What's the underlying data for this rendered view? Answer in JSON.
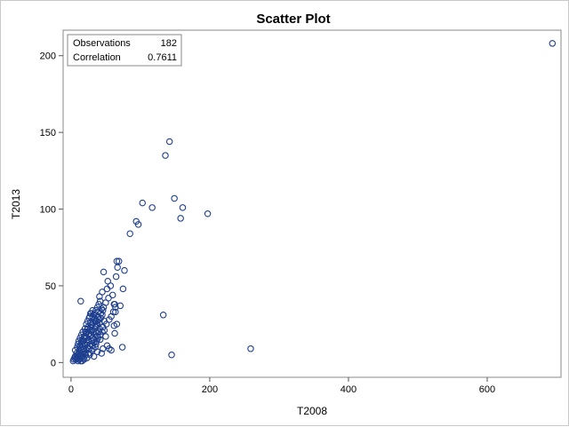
{
  "chart_data": {
    "type": "scatter",
    "title": "Scatter Plot",
    "xlabel": "T2008",
    "ylabel": "T2013",
    "xlim": [
      -5,
      700
    ],
    "ylim": [
      -5,
      212
    ],
    "xticks": [
      0,
      200,
      400,
      600
    ],
    "yticks": [
      0,
      50,
      100,
      150,
      200
    ],
    "grid": false,
    "legend": "none",
    "marker_color": "#1f3f8f",
    "stats": [
      {
        "label": "Observations",
        "value": "182"
      },
      {
        "label": "Correlation",
        "value": "0.7611"
      }
    ],
    "points": [
      [
        694,
        208
      ],
      [
        142,
        144
      ],
      [
        136,
        135
      ],
      [
        149,
        107
      ],
      [
        103,
        104
      ],
      [
        117,
        101
      ],
      [
        161,
        101
      ],
      [
        197,
        97
      ],
      [
        94,
        92
      ],
      [
        158,
        94
      ],
      [
        97,
        90
      ],
      [
        85,
        84
      ],
      [
        66,
        66
      ],
      [
        69,
        66
      ],
      [
        67,
        62
      ],
      [
        47,
        59
      ],
      [
        77,
        60
      ],
      [
        53,
        53
      ],
      [
        65,
        56
      ],
      [
        57,
        50
      ],
      [
        52,
        48
      ],
      [
        75,
        48
      ],
      [
        45,
        46
      ],
      [
        41,
        43
      ],
      [
        42,
        40
      ],
      [
        14,
        40
      ],
      [
        40,
        38
      ],
      [
        63,
        38
      ],
      [
        71,
        37
      ],
      [
        38,
        36
      ],
      [
        44,
        35
      ],
      [
        36,
        34
      ],
      [
        46,
        34
      ],
      [
        64,
        33
      ],
      [
        28,
        32
      ],
      [
        34,
        32
      ],
      [
        31,
        30
      ],
      [
        39,
        30
      ],
      [
        26,
        29
      ],
      [
        33,
        28
      ],
      [
        43,
        29
      ],
      [
        37,
        27
      ],
      [
        28,
        26
      ],
      [
        30,
        25
      ],
      [
        24,
        23
      ],
      [
        35,
        23
      ],
      [
        46,
        23
      ],
      [
        62,
        24
      ],
      [
        66,
        25
      ],
      [
        27,
        21
      ],
      [
        23,
        20
      ],
      [
        32,
        20
      ],
      [
        40,
        20
      ],
      [
        22,
        19
      ],
      [
        29,
        18
      ],
      [
        35,
        18
      ],
      [
        21,
        17
      ],
      [
        27,
        17
      ],
      [
        38,
        17
      ],
      [
        50,
        17
      ],
      [
        63,
        19
      ],
      [
        19,
        16
      ],
      [
        25,
        15
      ],
      [
        33,
        15
      ],
      [
        17,
        14
      ],
      [
        23,
        13
      ],
      [
        30,
        14
      ],
      [
        42,
        15
      ],
      [
        16,
        12
      ],
      [
        20,
        12
      ],
      [
        27,
        11
      ],
      [
        36,
        12
      ],
      [
        14,
        10
      ],
      [
        19,
        9
      ],
      [
        24,
        10
      ],
      [
        32,
        9
      ],
      [
        46,
        9
      ],
      [
        55,
        9
      ],
      [
        12,
        8
      ],
      [
        17,
        7
      ],
      [
        22,
        8
      ],
      [
        30,
        8
      ],
      [
        38,
        7
      ],
      [
        11,
        6
      ],
      [
        15,
        5
      ],
      [
        20,
        6
      ],
      [
        27,
        5
      ],
      [
        44,
        6
      ],
      [
        9,
        4
      ],
      [
        13,
        3
      ],
      [
        18,
        3
      ],
      [
        33,
        4
      ],
      [
        7,
        2
      ],
      [
        11,
        2
      ],
      [
        16,
        1
      ],
      [
        3,
        1
      ],
      [
        5,
        3
      ],
      [
        8,
        6
      ],
      [
        10,
        5
      ],
      [
        12,
        4
      ],
      [
        14,
        6
      ],
      [
        18,
        9
      ],
      [
        20,
        11
      ],
      [
        25,
        18
      ],
      [
        29,
        24
      ],
      [
        31,
        16
      ],
      [
        34,
        29
      ],
      [
        36,
        20
      ],
      [
        39,
        33
      ],
      [
        41,
        26
      ],
      [
        45,
        31
      ],
      [
        48,
        27
      ],
      [
        52,
        11
      ],
      [
        58,
        8
      ],
      [
        74,
        10
      ],
      [
        133,
        31
      ],
      [
        145,
        5
      ],
      [
        259,
        9
      ],
      [
        6,
        8
      ],
      [
        9,
        10
      ],
      [
        10,
        12
      ],
      [
        13,
        11
      ],
      [
        15,
        13
      ],
      [
        16,
        15
      ],
      [
        18,
        14
      ],
      [
        19,
        17
      ],
      [
        21,
        20
      ],
      [
        22,
        16
      ],
      [
        24,
        22
      ],
      [
        26,
        19
      ],
      [
        28,
        23
      ],
      [
        30,
        21
      ],
      [
        32,
        26
      ],
      [
        34,
        22
      ],
      [
        37,
        24
      ],
      [
        40,
        28
      ],
      [
        43,
        32
      ],
      [
        47,
        36
      ],
      [
        50,
        39
      ],
      [
        54,
        42
      ],
      [
        60,
        44
      ],
      [
        62,
        38
      ],
      [
        4,
        2
      ],
      [
        6,
        4
      ],
      [
        8,
        3
      ],
      [
        10,
        1
      ],
      [
        12,
        2
      ],
      [
        14,
        1
      ],
      [
        17,
        4
      ],
      [
        19,
        2
      ],
      [
        21,
        5
      ],
      [
        23,
        3
      ],
      [
        25,
        6
      ],
      [
        26,
        9
      ],
      [
        28,
        12
      ],
      [
        31,
        11
      ],
      [
        33,
        13
      ],
      [
        35,
        10
      ],
      [
        37,
        14
      ],
      [
        39,
        16
      ],
      [
        42,
        18
      ],
      [
        45,
        20
      ],
      [
        48,
        21
      ],
      [
        51,
        25
      ],
      [
        55,
        28
      ],
      [
        58,
        30
      ],
      [
        61,
        33
      ],
      [
        64,
        36
      ],
      [
        11,
        14
      ],
      [
        13,
        16
      ],
      [
        15,
        18
      ],
      [
        17,
        20
      ],
      [
        20,
        22
      ],
      [
        22,
        25
      ],
      [
        24,
        27
      ],
      [
        27,
        30
      ],
      [
        29,
        32
      ],
      [
        31,
        34
      ],
      [
        33,
        31
      ],
      [
        35,
        27
      ],
      [
        38,
        25
      ],
      [
        41,
        22
      ]
    ]
  }
}
